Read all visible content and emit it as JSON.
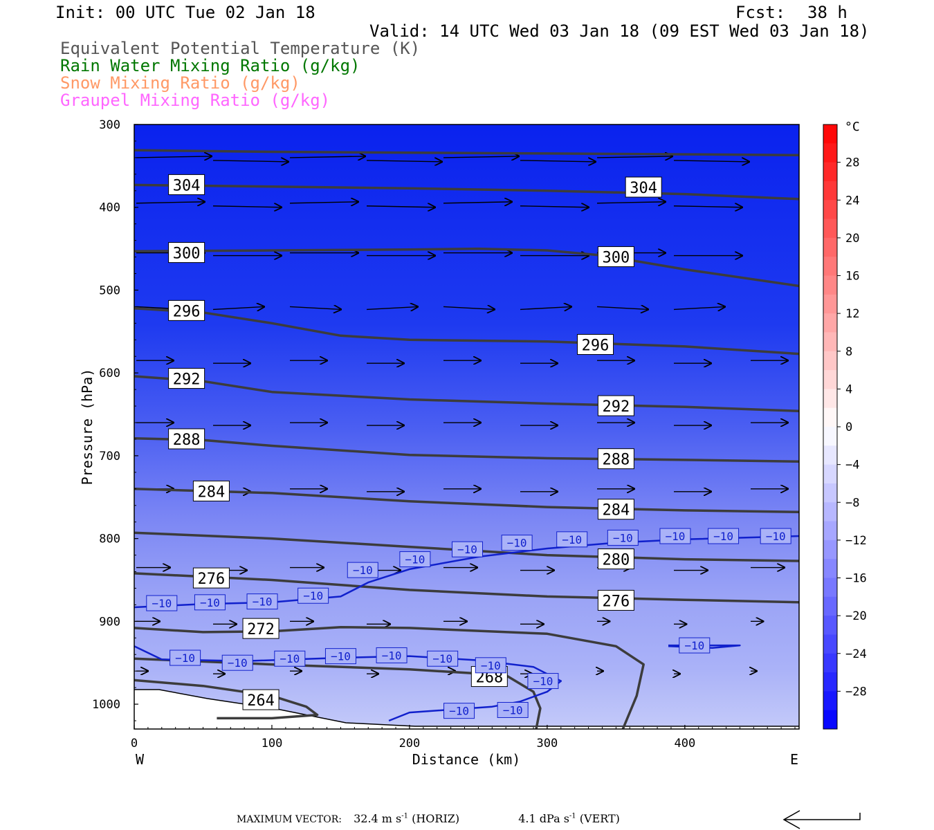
{
  "header": {
    "init": "Init: 00 UTC Tue 02 Jan 18",
    "fcst_label": "Fcst:",
    "fcst_value": "38 h",
    "valid": "Valid: 14 UTC Wed 03 Jan 18 (09 EST Wed 03 Jan 18)"
  },
  "legend": [
    {
      "label": "Equivalent Potential Temperature (K)",
      "color": "#555555"
    },
    {
      "label": "Rain Water Mixing Ratio (g/kg)",
      "color": "#007700"
    },
    {
      "label": "Snow Mixing Ratio (g/kg)",
      "color": "#ff9966"
    },
    {
      "label": "Graupel Mixing Ratio (g/kg)",
      "color": "#ff66ff"
    }
  ],
  "chart_data": {
    "type": "cross-section",
    "xlabel": "Distance (km)",
    "ylabel": "Pressure (hPa)",
    "xlim": [
      0,
      483
    ],
    "ylim": [
      1030,
      300
    ],
    "x_ticks": [
      "0",
      "100",
      "200",
      "300",
      "400"
    ],
    "y_ticks": [
      "300",
      "400",
      "500",
      "600",
      "700",
      "800",
      "900",
      "1000"
    ],
    "west_label": "W",
    "east_label": "E",
    "colorbar": {
      "unit": "°C",
      "labels": [
        "28",
        "24",
        "20",
        "16",
        "12",
        "8",
        "4",
        "0",
        "−4",
        "−8",
        "−12",
        "−16",
        "−20",
        "−24",
        "−28"
      ],
      "min": -32,
      "max": 32
    },
    "theta_e_contours": [
      {
        "label": "304",
        "points": [
          [
            0,
            331
          ],
          [
            100,
            333
          ],
          [
            200,
            334
          ],
          [
            300,
            335
          ],
          [
            400,
            336
          ],
          [
            483,
            337
          ]
        ]
      },
      {
        "label": "304",
        "points": [
          [
            0,
            373
          ],
          [
            100,
            375
          ],
          [
            200,
            377
          ],
          [
            300,
            380
          ],
          [
            400,
            384
          ],
          [
            483,
            390
          ]
        ]
      },
      {
        "label": "300",
        "points": [
          [
            0,
            453
          ],
          [
            100,
            452
          ],
          [
            200,
            451
          ],
          [
            250,
            450
          ],
          [
            300,
            452
          ],
          [
            340,
            458
          ],
          [
            400,
            475
          ],
          [
            483,
            495
          ]
        ]
      },
      {
        "label": "296",
        "points": [
          [
            0,
            522
          ],
          [
            50,
            527
          ],
          [
            100,
            540
          ],
          [
            150,
            555
          ],
          [
            200,
            560
          ],
          [
            300,
            562
          ],
          [
            400,
            568
          ],
          [
            483,
            577
          ]
        ]
      },
      {
        "label": "292",
        "points": [
          [
            0,
            604
          ],
          [
            50,
            610
          ],
          [
            100,
            623
          ],
          [
            200,
            632
          ],
          [
            300,
            637
          ],
          [
            400,
            641
          ],
          [
            483,
            646
          ]
        ]
      },
      {
        "label": "288",
        "points": [
          [
            0,
            679
          ],
          [
            50,
            681
          ],
          [
            100,
            688
          ],
          [
            200,
            699
          ],
          [
            300,
            703
          ],
          [
            400,
            705
          ],
          [
            483,
            707
          ]
        ]
      },
      {
        "label": "284",
        "points": [
          [
            0,
            740
          ],
          [
            100,
            745
          ],
          [
            200,
            755
          ],
          [
            300,
            762
          ],
          [
            400,
            766
          ],
          [
            483,
            768
          ]
        ]
      },
      {
        "label": "280",
        "points": [
          [
            0,
            793
          ],
          [
            100,
            800
          ],
          [
            200,
            810
          ],
          [
            300,
            820
          ],
          [
            400,
            825
          ],
          [
            483,
            827
          ]
        ]
      },
      {
        "label": "276",
        "points": [
          [
            0,
            842
          ],
          [
            100,
            850
          ],
          [
            200,
            862
          ],
          [
            300,
            870
          ],
          [
            400,
            874
          ],
          [
            483,
            877
          ]
        ]
      },
      {
        "label": "272",
        "points": [
          [
            0,
            908
          ],
          [
            50,
            913
          ],
          [
            100,
            912
          ],
          [
            150,
            907
          ],
          [
            200,
            908
          ],
          [
            300,
            915
          ],
          [
            350,
            930
          ],
          [
            370,
            952
          ],
          [
            365,
            990
          ],
          [
            355,
            1030
          ]
        ]
      },
      {
        "label": "268",
        "points": [
          [
            0,
            945
          ],
          [
            100,
            952
          ],
          [
            200,
            958
          ],
          [
            270,
            965
          ],
          [
            290,
            985
          ],
          [
            295,
            1005
          ],
          [
            292,
            1030
          ]
        ]
      },
      {
        "label": "264",
        "points": [
          [
            0,
            971
          ],
          [
            50,
            978
          ],
          [
            100,
            990
          ],
          [
            125,
            1003
          ],
          [
            133,
            1013
          ],
          [
            100,
            1017
          ],
          [
            60,
            1017
          ]
        ]
      }
    ],
    "temperature_contours": [
      {
        "label": "−10",
        "points": [
          [
            0,
            883
          ],
          [
            50,
            879
          ],
          [
            100,
            877
          ],
          [
            150,
            870
          ],
          [
            170,
            853
          ],
          [
            200,
            837
          ],
          [
            250,
            822
          ],
          [
            300,
            812
          ],
          [
            350,
            805
          ],
          [
            400,
            801
          ],
          [
            483,
            797
          ]
        ]
      },
      {
        "label": "−10",
        "points": [
          [
            0,
            930
          ],
          [
            20,
            946
          ],
          [
            80,
            948
          ],
          [
            150,
            944
          ],
          [
            200,
            942
          ],
          [
            250,
            947
          ],
          [
            290,
            955
          ],
          [
            310,
            972
          ],
          [
            300,
            985
          ],
          [
            280,
            997
          ],
          [
            260,
            1003
          ],
          [
            200,
            1010
          ],
          [
            185,
            1020
          ]
        ]
      },
      {
        "label": "−10",
        "points": [
          [
            388,
            929
          ],
          [
            420,
            929
          ],
          [
            440,
            929
          ],
          [
            420,
            932
          ],
          [
            388,
            930
          ]
        ]
      }
    ],
    "maximum_vector_horiz": "32.4",
    "maximum_vector_vert": "4.1"
  },
  "footer": {
    "label": "MAXIMUM VECTOR:",
    "horiz_value": "32.4",
    "horiz_unit": "m s",
    "horiz_exp": "-1",
    "horiz_tag": "(HORIZ)",
    "vert_value": "4.1",
    "vert_unit": "dPa s",
    "vert_exp": "-1",
    "vert_tag": "(VERT)"
  }
}
